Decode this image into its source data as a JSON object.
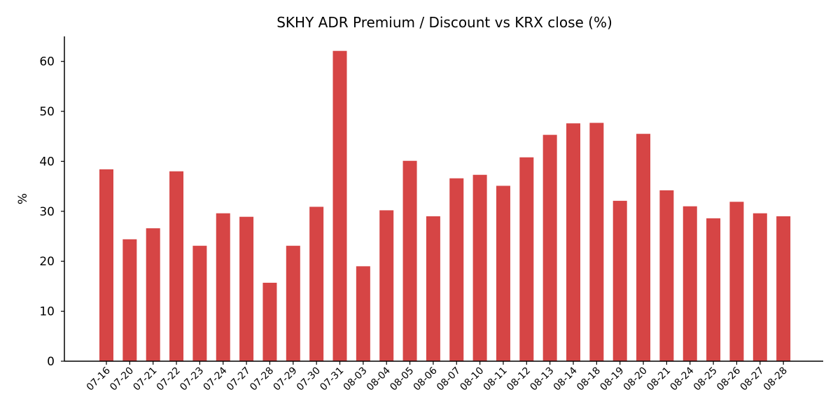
{
  "chart_data": {
    "type": "bar",
    "title": "SKHY ADR Premium / Discount vs KRX close (%)",
    "xlabel": "",
    "ylabel": "%",
    "ylim": [
      0,
      65
    ],
    "yticks": [
      0,
      10,
      20,
      30,
      40,
      50,
      60
    ],
    "grid": false,
    "legend": "none",
    "bar_color": "#d64545",
    "categories": [
      "07-16",
      "07-20",
      "07-21",
      "07-22",
      "07-23",
      "07-24",
      "07-27",
      "07-28",
      "07-29",
      "07-30",
      "07-31",
      "08-03",
      "08-04",
      "08-05",
      "08-06",
      "08-07",
      "08-10",
      "08-11",
      "08-12",
      "08-13",
      "08-14",
      "08-18",
      "08-19",
      "08-20",
      "08-21",
      "08-24",
      "08-25",
      "08-26",
      "08-27",
      "08-28"
    ],
    "values": [
      38.4,
      24.4,
      26.6,
      38.0,
      23.1,
      29.6,
      28.9,
      15.7,
      23.1,
      30.9,
      62.1,
      19.0,
      30.2,
      40.1,
      29.0,
      36.6,
      37.3,
      35.1,
      40.8,
      45.3,
      47.6,
      47.7,
      32.1,
      45.5,
      34.2,
      31.0,
      28.6,
      31.9,
      29.6,
      29.0
    ]
  }
}
